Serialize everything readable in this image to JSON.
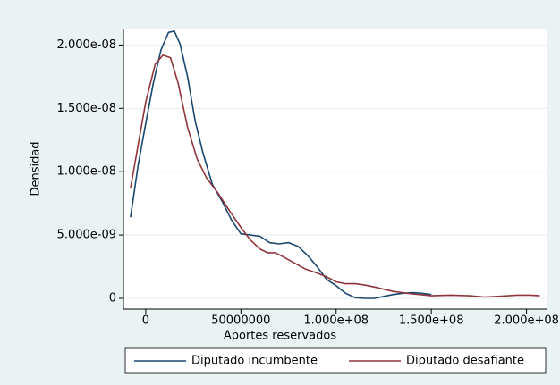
{
  "chart_data": {
    "type": "line",
    "x_label": "Aportes reservados",
    "y_label": "Densidad",
    "xlim": [
      -11700000,
      211000000
    ],
    "ylim": [
      -8.5e-10,
      2.13e-08
    ],
    "xticks": [
      0,
      50000000,
      {
        "value": 100000000,
        "label": "1.000e+08"
      },
      {
        "value": 150000000,
        "label": "1.500e+08"
      },
      {
        "value": 200000000,
        "label": "2.000e+08"
      }
    ],
    "yticks": [
      0,
      {
        "value": 5e-09,
        "label": "5.000e-09"
      },
      {
        "value": 1e-08,
        "label": "1.000e-08"
      },
      {
        "value": 1.5e-08,
        "label": "1.500e-08"
      },
      {
        "value": 2e-08,
        "label": "2.000e-08"
      }
    ],
    "grid": true,
    "legend": "bottom",
    "series": [
      {
        "name": "Diputado incumbente",
        "color": "#1a476f",
        "x": [
          -8000000,
          -4000000,
          0,
          4000000,
          8000000,
          12000000,
          15000000,
          18000000,
          22000000,
          26000000,
          30000000,
          35000000,
          40000000,
          45000000,
          50000000,
          55000000,
          60000000,
          65000000,
          70000000,
          75000000,
          80000000,
          85000000,
          90000000,
          95000000,
          100000000,
          105000000,
          110000000,
          115000000,
          120000000,
          125000000,
          130000000,
          135000000,
          140000000,
          145000000,
          150000000
        ],
        "values": [
          6.4e-09,
          1.05e-08,
          1.38e-08,
          1.7e-08,
          1.96e-08,
          2.1e-08,
          2.11e-08,
          2.01e-08,
          1.75e-08,
          1.4e-08,
          1.15e-08,
          9e-09,
          7.7e-09,
          6.2e-09,
          5.1e-09,
          5e-09,
          4.9e-09,
          4.4e-09,
          4.3e-09,
          4.4e-09,
          4.1e-09,
          3.4e-09,
          2.5e-09,
          1.5e-09,
          1e-09,
          4e-10,
          5e-11,
          0,
          0,
          1.5e-10,
          3e-10,
          4e-10,
          4.5e-10,
          4e-10,
          3e-10
        ]
      },
      {
        "name": "Diputado desafiante",
        "color": "#90353b",
        "x": [
          -8000000,
          0,
          5000000,
          9000000,
          13000000,
          17000000,
          22000000,
          27000000,
          32000000,
          38000000,
          44000000,
          50000000,
          55000000,
          60000000,
          64000000,
          68000000,
          72000000,
          78000000,
          84000000,
          90000000,
          95000000,
          100000000,
          105000000,
          110000000,
          115000000,
          120000000,
          130000000,
          140000000,
          150000000,
          160000000,
          170000000,
          178000000,
          185000000,
          195000000,
          202000000,
          207000000
        ],
        "values": [
          8.7e-09,
          1.55e-08,
          1.85e-08,
          1.92e-08,
          1.9e-08,
          1.7e-08,
          1.35e-08,
          1.1e-08,
          9.5e-09,
          8.3e-09,
          6.9e-09,
          5.6e-09,
          4.6e-09,
          3.9e-09,
          3.6e-09,
          3.6e-09,
          3.3e-09,
          2.8e-09,
          2.3e-09,
          2e-09,
          1.7e-09,
          1.3e-09,
          1.15e-09,
          1.15e-09,
          1.05e-09,
          9e-10,
          5.5e-10,
          3.5e-10,
          2e-10,
          2.5e-10,
          2e-10,
          1e-10,
          1.5e-10,
          2.5e-10,
          2.5e-10,
          2e-10
        ]
      }
    ]
  }
}
